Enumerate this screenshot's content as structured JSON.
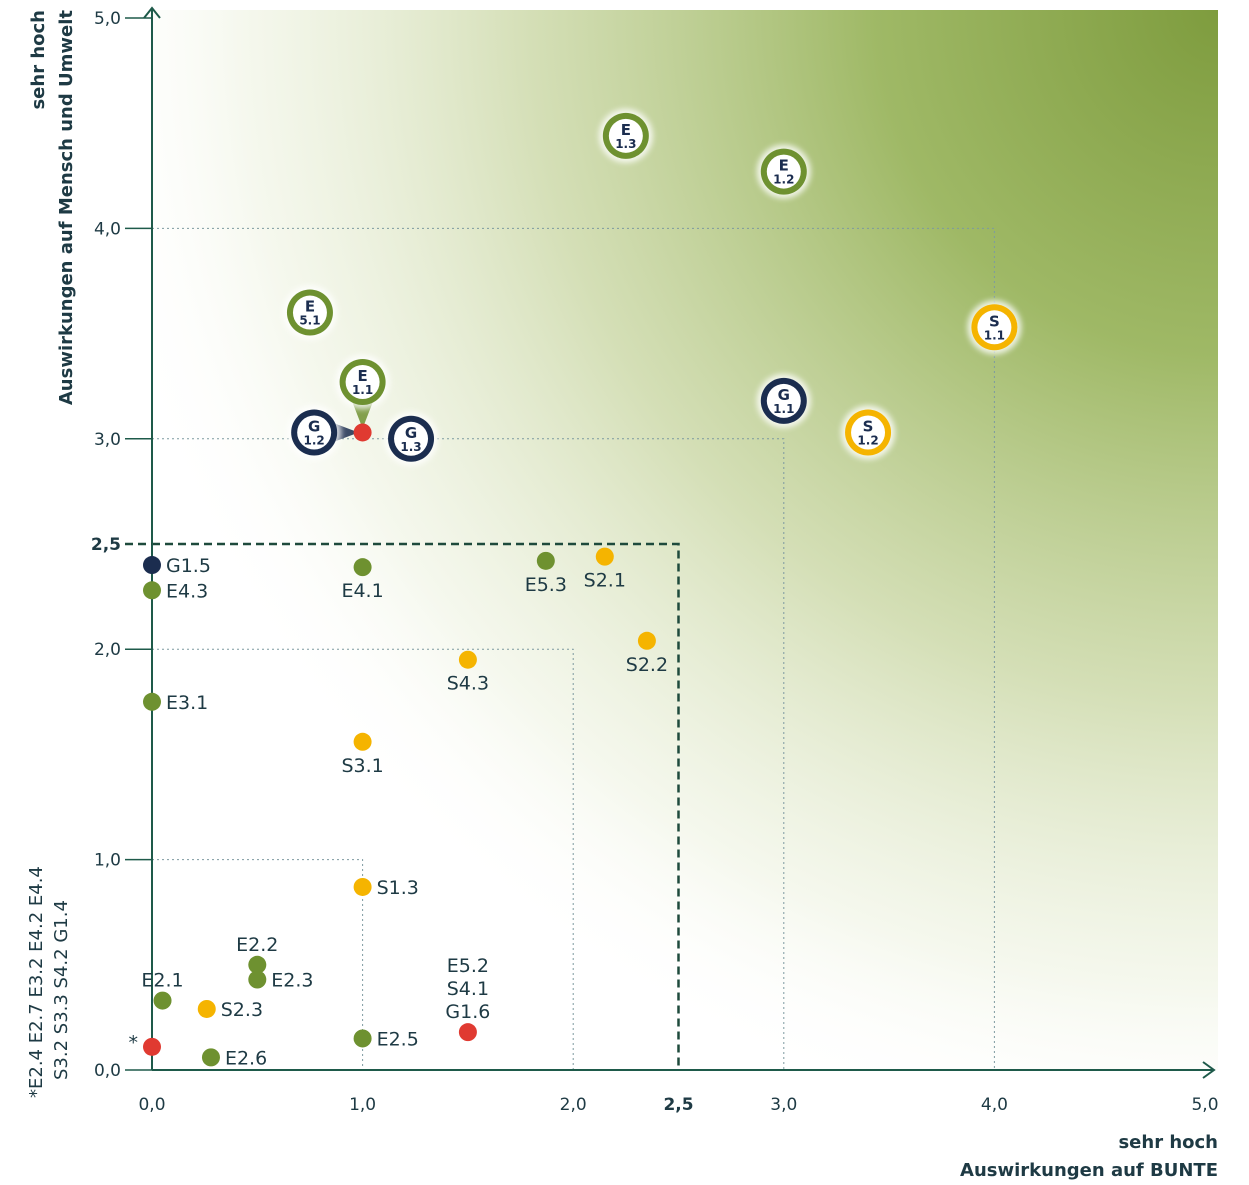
{
  "chart_data": {
    "type": "scatter",
    "xlabel": [
      "sehr hoch",
      "Auswirkungen auf BUNTE"
    ],
    "ylabel": [
      "sehr hoch",
      "Auswirkungen auf Mensch und Umwelt"
    ],
    "xlim": [
      0,
      5
    ],
    "ylim": [
      0,
      5
    ],
    "xticks": [
      "0,0",
      "1,0",
      "2,0",
      "2,5",
      "3,0",
      "4,0",
      "5,0"
    ],
    "yticks": [
      "0,0",
      "1,0",
      "2,0",
      "2,5",
      "3,0",
      "4,0",
      "5,0"
    ],
    "threshold": 2.5,
    "colors": {
      "E": "#6e9130",
      "S": "#f5b400",
      "G": "#1b2d4f",
      "red": "#e03a31",
      "axis": "#1e5a4a",
      "gradient": "#88a446"
    },
    "badges": [
      {
        "category": "E",
        "num": "1.3",
        "x": 2.25,
        "y": 4.44
      },
      {
        "category": "E",
        "num": "1.2",
        "x": 3.0,
        "y": 4.27
      },
      {
        "category": "E",
        "num": "5.1",
        "x": 0.75,
        "y": 3.6
      },
      {
        "category": "E",
        "num": "1.1",
        "x": 1.0,
        "y": 3.27
      },
      {
        "category": "G",
        "num": "1.2",
        "x": 0.77,
        "y": 3.03
      },
      {
        "category": "G",
        "num": "1.3",
        "x": 1.23,
        "y": 3.0
      },
      {
        "category": "G",
        "num": "1.1",
        "x": 3.0,
        "y": 3.18
      },
      {
        "category": "S",
        "num": "1.1",
        "x": 4.0,
        "y": 3.53
      },
      {
        "category": "S",
        "num": "1.2",
        "x": 3.4,
        "y": 3.03
      }
    ],
    "points": [
      {
        "labels": [
          "G1.5"
        ],
        "x": 0.0,
        "y": 2.4,
        "color": "G",
        "pos": "right"
      },
      {
        "labels": [
          "E4.3"
        ],
        "x": 0.0,
        "y": 2.28,
        "color": "E",
        "pos": "right"
      },
      {
        "labels": [
          "E3.1"
        ],
        "x": 0.0,
        "y": 1.75,
        "color": "E",
        "pos": "right"
      },
      {
        "labels": [
          "E4.1"
        ],
        "x": 1.0,
        "y": 2.39,
        "color": "E",
        "pos": "below"
      },
      {
        "labels": [
          "E5.3"
        ],
        "x": 1.87,
        "y": 2.42,
        "color": "E",
        "pos": "below"
      },
      {
        "labels": [
          "S2.1"
        ],
        "x": 2.15,
        "y": 2.44,
        "color": "S",
        "pos": "below"
      },
      {
        "labels": [
          "S2.2"
        ],
        "x": 2.35,
        "y": 2.04,
        "color": "S",
        "pos": "below"
      },
      {
        "labels": [
          "S4.3"
        ],
        "x": 1.5,
        "y": 1.95,
        "color": "S",
        "pos": "below"
      },
      {
        "labels": [
          "S3.1"
        ],
        "x": 1.0,
        "y": 1.56,
        "color": "S",
        "pos": "below"
      },
      {
        "labels": [
          "S1.3"
        ],
        "x": 1.0,
        "y": 0.87,
        "color": "S",
        "pos": "right"
      },
      {
        "labels": [
          "E2.2"
        ],
        "x": 0.5,
        "y": 0.5,
        "color": "E",
        "pos": "above"
      },
      {
        "labels": [
          "E2.3"
        ],
        "x": 0.5,
        "y": 0.43,
        "color": "E",
        "pos": "right"
      },
      {
        "labels": [
          "E2.1"
        ],
        "x": 0.05,
        "y": 0.33,
        "color": "E",
        "pos": "above"
      },
      {
        "labels": [
          "S2.3"
        ],
        "x": 0.26,
        "y": 0.29,
        "color": "S",
        "pos": "right"
      },
      {
        "labels": [
          "E2.6"
        ],
        "x": 0.28,
        "y": 0.06,
        "color": "E",
        "pos": "right"
      },
      {
        "labels": [
          "E2.5"
        ],
        "x": 1.0,
        "y": 0.15,
        "color": "E",
        "pos": "right"
      },
      {
        "labels": [
          "E5.2",
          "S4.1",
          "G1.6"
        ],
        "x": 1.5,
        "y": 0.18,
        "color": "red",
        "pos": "above"
      },
      {
        "labels": [
          "*"
        ],
        "x": 0.0,
        "y": 0.11,
        "color": "red",
        "pos": "left"
      }
    ],
    "guides": [
      {
        "x": 1.0,
        "y": 1.0
      },
      {
        "x": 2.0,
        "y": 2.0
      },
      {
        "x": 3.0,
        "y": 3.0
      },
      {
        "x": 4.0,
        "y": 4.0
      }
    ],
    "footnote_lines": [
      "*E2.4  E2.7  E3.2  E4.2  E4.4",
      "S3.2  S3.3  S4.2  G1.4"
    ]
  }
}
